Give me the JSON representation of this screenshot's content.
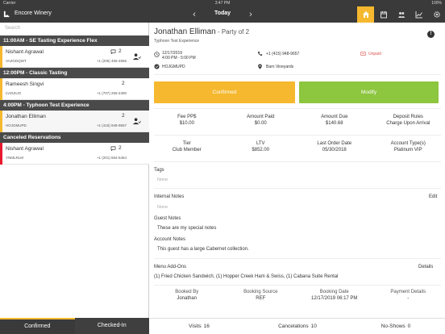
{
  "status_bar": {
    "carrier": "Carrier",
    "time": "3:47 PM",
    "battery": "100%"
  },
  "nav": {
    "app_title": "Encore Winery",
    "date_label": "Today",
    "icons": [
      "home-icon",
      "calendar-icon",
      "people-icon",
      "chart-icon",
      "gear-icon"
    ]
  },
  "search": {
    "placeholder": "Search"
  },
  "groups": [
    {
      "title": "11:00AM - SE  Tasting Experience Flex",
      "reservations": [
        {
          "name": "Nishant Agrawal",
          "code": "VAZGDQWT",
          "count": "2",
          "phone": "+1 (205) 455-4555",
          "bar_color": "#f5b82e",
          "has_comment": true
        }
      ]
    },
    {
      "title": "12:00PM - Classic Tasting",
      "reservations": [
        {
          "name": "Rameesh Singvi",
          "code": "LVZUIUO",
          "count": "2",
          "phone": "+1 (707) 255-4390",
          "bar_color": "#f5b82e",
          "has_comment": false
        }
      ]
    },
    {
      "title": "4:00PM - Typhoon Test Experience",
      "reservations": [
        {
          "name": "Jonathan Elliman",
          "code": "HOJGMUPD",
          "count": "2",
          "phone": "+1 (415) 948-9657",
          "bar_color": "#f5b82e",
          "has_comment": false
        }
      ]
    },
    {
      "title": "Canceled Reservations",
      "reservations": [
        {
          "name": "Nishant Agrawal",
          "code": "YNMLRLM",
          "count": "2",
          "phone": "+1 (201) 554-5454",
          "bar_color": "#e8192c",
          "has_comment": true
        }
      ]
    }
  ],
  "bottom_tabs": {
    "confirmed": "Confirmed",
    "checked_in": "Checked-In"
  },
  "detail": {
    "guest_name": "Jonathan Elliman",
    "party": " - Party of 2",
    "experience": "Typhoon Test Experience",
    "date": "12/17/2019",
    "time": "4:00 PM - 5:00 PM",
    "code": "HOJGMUPD",
    "phone": "+1 (415) 948-9657",
    "location": "Barn Vineyards",
    "payment_status": "Unpaid",
    "confirmed_label": "Confirmed",
    "modify_label": "Modify",
    "fees": [
      {
        "label": "Fee PP$",
        "value": "$10.00"
      },
      {
        "label": "Amount Paid",
        "value": "$0.00"
      },
      {
        "label": "Amount Due",
        "value": "$140.68"
      },
      {
        "label": "Deposit Rules",
        "value": "Charge Upon Arrival"
      }
    ],
    "member": [
      {
        "label": "Tier",
        "value": "Club Member"
      },
      {
        "label": "LTV",
        "value": "$852.00"
      },
      {
        "label": "Last Order Date",
        "value": "05/30/2018"
      },
      {
        "label": "Account Type(s)",
        "value": "Platinum VIP"
      }
    ],
    "tags_label": "Tags",
    "tags_value": "None",
    "internal_notes_label": "Internal Notes",
    "edit_label": "Edit",
    "internal_notes_value": "None",
    "guest_notes_label": "Guest Notes",
    "guest_notes_value": "These are my special notes",
    "account_notes_label": "Account Notes",
    "account_notes_value": "This guest has a large Cabernet collection.",
    "addons_label": "Menu Add-Ons",
    "details_label": "Details",
    "addons_value": "(1) Fried Chicken Sandwich, (1) Hopper Creek Ham & Swiss, (1) Cabana Suite Rental",
    "booking": [
      {
        "label": "Booked By",
        "value": "Jonathan"
      },
      {
        "label": "Booking Source",
        "value": "REF"
      },
      {
        "label": "Booking Date",
        "value": "12/17/2019 06:17 PM"
      },
      {
        "label": "Payment Details",
        "value": "-"
      }
    ]
  },
  "counters": {
    "visits_label": "Visits",
    "visits_value": "16",
    "cancelations_label": "Cancelations",
    "cancelations_value": "10",
    "noshows_label": "No-Shows",
    "noshows_value": "0"
  },
  "colors": {
    "accent": "#f5b82e",
    "modify": "#8dc63f",
    "dark": "#3a3a3a",
    "cancel": "#e8192c"
  }
}
